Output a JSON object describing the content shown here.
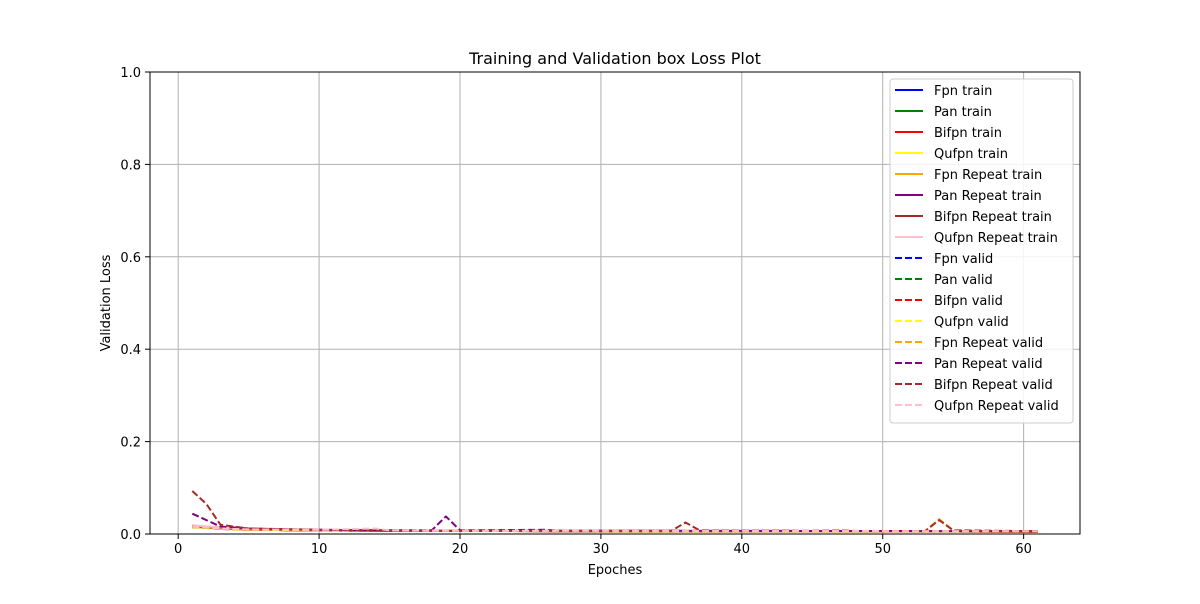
{
  "chart_data": {
    "type": "line",
    "title": "Training and Validation box Loss Plot",
    "xlabel": "Epoches",
    "ylabel": "Validation Loss",
    "xlim": [
      -2,
      64
    ],
    "ylim": [
      0,
      1.0
    ],
    "xticks": [
      0,
      10,
      20,
      30,
      40,
      50,
      60
    ],
    "yticks": [
      0.0,
      0.2,
      0.4,
      0.6,
      0.8,
      1.0
    ],
    "grid": true,
    "legend_position": "top-right",
    "series": [
      {
        "name": "Fpn train",
        "color": "#0000ff",
        "style": "solid",
        "points": [
          [
            1,
            0.016
          ],
          [
            3,
            0.012
          ],
          [
            5,
            0.01
          ],
          [
            8,
            0.008
          ],
          [
            15,
            0.007
          ],
          [
            30,
            0.006
          ],
          [
            45,
            0.006
          ],
          [
            61,
            0.005
          ]
        ]
      },
      {
        "name": "Pan train",
        "color": "#008000",
        "style": "solid",
        "points": [
          [
            1,
            0.016
          ],
          [
            3,
            0.012
          ],
          [
            5,
            0.01
          ],
          [
            8,
            0.008
          ],
          [
            15,
            0.007
          ],
          [
            30,
            0.006
          ],
          [
            45,
            0.006
          ],
          [
            61,
            0.005
          ]
        ]
      },
      {
        "name": "Bifpn train",
        "color": "#ff0000",
        "style": "solid",
        "points": [
          [
            1,
            0.017
          ],
          [
            3,
            0.012
          ],
          [
            5,
            0.01
          ],
          [
            8,
            0.008
          ],
          [
            15,
            0.007
          ],
          [
            30,
            0.006
          ],
          [
            45,
            0.006
          ],
          [
            61,
            0.005
          ]
        ]
      },
      {
        "name": "Qufpn train",
        "color": "#ffff00",
        "style": "solid",
        "points": [
          [
            1,
            0.016
          ],
          [
            3,
            0.012
          ],
          [
            5,
            0.01
          ],
          [
            8,
            0.008
          ],
          [
            15,
            0.007
          ],
          [
            30,
            0.006
          ],
          [
            45,
            0.006
          ],
          [
            61,
            0.005
          ]
        ]
      },
      {
        "name": "Fpn Repeat train",
        "color": "#ffa500",
        "style": "solid",
        "points": [
          [
            1,
            0.016
          ],
          [
            3,
            0.012
          ],
          [
            5,
            0.01
          ],
          [
            8,
            0.008
          ],
          [
            15,
            0.007
          ],
          [
            30,
            0.006
          ],
          [
            45,
            0.006
          ],
          [
            61,
            0.005
          ]
        ]
      },
      {
        "name": "Pan Repeat train",
        "color": "#800080",
        "style": "solid",
        "points": [
          [
            1,
            0.018
          ],
          [
            3,
            0.014
          ],
          [
            5,
            0.011
          ],
          [
            8,
            0.009
          ],
          [
            15,
            0.007
          ],
          [
            30,
            0.006
          ],
          [
            45,
            0.006
          ],
          [
            61,
            0.005
          ]
        ]
      },
      {
        "name": "Bifpn Repeat train",
        "color": "#a52a2a",
        "style": "solid",
        "points": [
          [
            1,
            0.017
          ],
          [
            3,
            0.013
          ],
          [
            5,
            0.01
          ],
          [
            8,
            0.008
          ],
          [
            15,
            0.007
          ],
          [
            30,
            0.006
          ],
          [
            45,
            0.006
          ],
          [
            61,
            0.005
          ]
        ]
      },
      {
        "name": "Qufpn Repeat train",
        "color": "#ffc0cb",
        "style": "solid",
        "points": [
          [
            1,
            0.019
          ],
          [
            3,
            0.014
          ],
          [
            5,
            0.011
          ],
          [
            8,
            0.009
          ],
          [
            15,
            0.008
          ],
          [
            30,
            0.007
          ],
          [
            45,
            0.006
          ],
          [
            61,
            0.006
          ]
        ]
      },
      {
        "name": "Fpn valid",
        "color": "#0000ff",
        "style": "dashed",
        "points": [
          [
            1,
            0.015
          ],
          [
            3,
            0.011
          ],
          [
            5,
            0.009
          ],
          [
            10,
            0.008
          ],
          [
            20,
            0.007
          ],
          [
            30,
            0.006
          ],
          [
            61,
            0.006
          ]
        ]
      },
      {
        "name": "Pan valid",
        "color": "#008000",
        "style": "dashed",
        "points": [
          [
            1,
            0.015
          ],
          [
            3,
            0.011
          ],
          [
            5,
            0.009
          ],
          [
            10,
            0.008
          ],
          [
            20,
            0.007
          ],
          [
            30,
            0.006
          ],
          [
            61,
            0.006
          ]
        ]
      },
      {
        "name": "Bifpn valid",
        "color": "#ff0000",
        "style": "dashed",
        "points": [
          [
            1,
            0.016
          ],
          [
            3,
            0.011
          ],
          [
            5,
            0.009
          ],
          [
            10,
            0.008
          ],
          [
            20,
            0.007
          ],
          [
            30,
            0.006
          ],
          [
            61,
            0.006
          ]
        ]
      },
      {
        "name": "Qufpn valid",
        "color": "#ffff00",
        "style": "dashed",
        "points": [
          [
            1,
            0.015
          ],
          [
            3,
            0.011
          ],
          [
            5,
            0.009
          ],
          [
            10,
            0.008
          ],
          [
            20,
            0.007
          ],
          [
            30,
            0.006
          ],
          [
            61,
            0.006
          ]
        ]
      },
      {
        "name": "Fpn Repeat valid",
        "color": "#ffa500",
        "style": "dashed",
        "points": [
          [
            1,
            0.015
          ],
          [
            3,
            0.011
          ],
          [
            5,
            0.009
          ],
          [
            9,
            0.01
          ],
          [
            10,
            0.008
          ],
          [
            20,
            0.007
          ],
          [
            43,
            0.008
          ],
          [
            44,
            0.007
          ],
          [
            47,
            0.009
          ],
          [
            48,
            0.007
          ],
          [
            53,
            0.006
          ],
          [
            54,
            0.032
          ],
          [
            55,
            0.008
          ],
          [
            56,
            0.006
          ],
          [
            61,
            0.006
          ]
        ]
      },
      {
        "name": "Pan Repeat valid",
        "color": "#800080",
        "style": "dashed",
        "points": [
          [
            1,
            0.044
          ],
          [
            2,
            0.03
          ],
          [
            3,
            0.016
          ],
          [
            5,
            0.012
          ],
          [
            10,
            0.009
          ],
          [
            14,
            0.008
          ],
          [
            18,
            0.008
          ],
          [
            19,
            0.038
          ],
          [
            20,
            0.008
          ],
          [
            26,
            0.009
          ],
          [
            27,
            0.007
          ],
          [
            35,
            0.007
          ],
          [
            61,
            0.006
          ]
        ]
      },
      {
        "name": "Bifpn Repeat valid",
        "color": "#a52a2a",
        "style": "dashed",
        "points": [
          [
            1,
            0.093
          ],
          [
            2,
            0.065
          ],
          [
            3,
            0.02
          ],
          [
            5,
            0.012
          ],
          [
            10,
            0.009
          ],
          [
            20,
            0.007
          ],
          [
            35,
            0.007
          ],
          [
            36,
            0.025
          ],
          [
            37,
            0.008
          ],
          [
            40,
            0.007
          ],
          [
            53,
            0.006
          ],
          [
            54,
            0.03
          ],
          [
            55,
            0.008
          ],
          [
            61,
            0.006
          ]
        ]
      },
      {
        "name": "Qufpn Repeat valid",
        "color": "#ffc0cb",
        "style": "dashed",
        "points": [
          [
            1,
            0.016
          ],
          [
            3,
            0.012
          ],
          [
            5,
            0.01
          ],
          [
            10,
            0.009
          ],
          [
            14,
            0.012
          ],
          [
            15,
            0.008
          ],
          [
            20,
            0.007
          ],
          [
            30,
            0.007
          ],
          [
            61,
            0.006
          ]
        ]
      }
    ]
  }
}
